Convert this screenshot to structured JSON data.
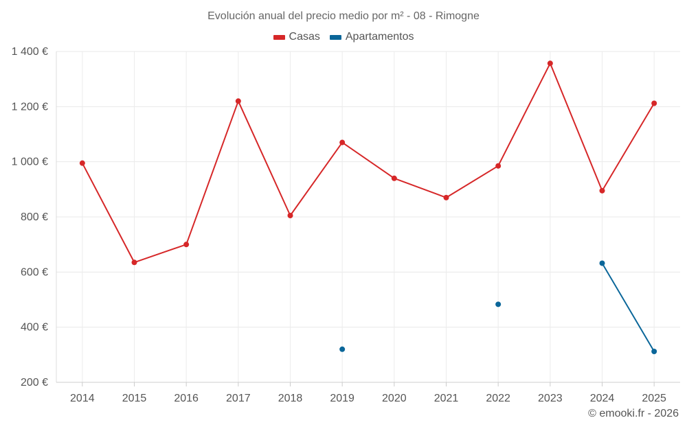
{
  "chart_data": {
    "type": "line",
    "title": "Evolución anual del precio medio por m² - 08 - Rimogne",
    "xlabel": "",
    "ylabel": "",
    "categories": [
      "2014",
      "2015",
      "2016",
      "2017",
      "2018",
      "2019",
      "2020",
      "2021",
      "2022",
      "2023",
      "2024",
      "2025"
    ],
    "ylim": [
      200,
      1400
    ],
    "yticks": [
      {
        "value": 200,
        "label": "200 €"
      },
      {
        "value": 400,
        "label": "400 €"
      },
      {
        "value": 600,
        "label": "600 €"
      },
      {
        "value": 800,
        "label": "800 €"
      },
      {
        "value": 1000,
        "label": "1 000 €"
      },
      {
        "value": 1200,
        "label": "1 200 €"
      },
      {
        "value": 1400,
        "label": "1 400 €"
      }
    ],
    "grid": true,
    "legend_position": "top-center",
    "series": [
      {
        "name": "Casas",
        "color": "#d62728",
        "values": [
          995,
          635,
          700,
          1220,
          805,
          1070,
          940,
          870,
          985,
          1357,
          895,
          1212
        ]
      },
      {
        "name": "Apartamentos",
        "color": "#0a6699",
        "values": [
          null,
          null,
          null,
          null,
          null,
          320,
          null,
          null,
          483,
          null,
          632,
          312
        ]
      }
    ]
  },
  "footer": "© emooki.fr - 2026"
}
